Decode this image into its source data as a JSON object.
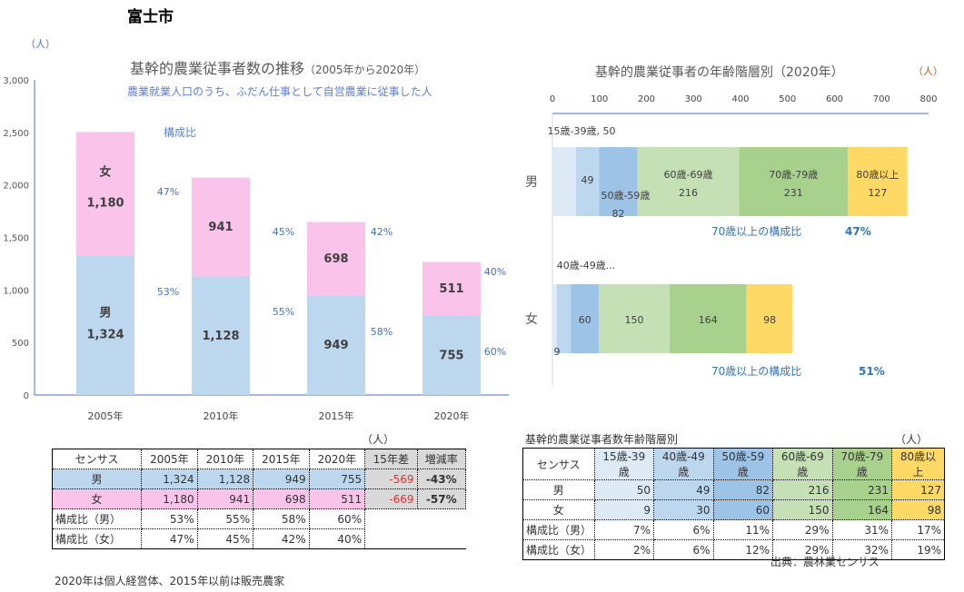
{
  "page_title": "富士市",
  "colors": {
    "male": "#bdd7ee",
    "female": "#f9c3ea",
    "axis": "#4472c4",
    "gray": "#d9d9d9",
    "ages": [
      "#deebf7",
      "#bdd7ee",
      "#9dc3e6",
      "#c5e0b4",
      "#a9d18e",
      "#ffd966"
    ]
  },
  "chart_data": [
    {
      "type": "bar",
      "stacked": true,
      "title": "基幹的農業従事者数の推移",
      "title_suffix": "（2005年から2020年）",
      "subtitle": "農業就業人口のうち、ふだん仕事として自営農業に従事した人",
      "unit_label": "（人）",
      "ratio_label": "構成比",
      "categories": [
        "2005年",
        "2010年",
        "2015年",
        "2020年"
      ],
      "series": [
        {
          "name": "男",
          "values": [
            1324,
            1128,
            949,
            755
          ],
          "labels": [
            "1,324",
            "1,128",
            "949",
            "755"
          ],
          "ratios": [
            "53%",
            "55%",
            "58%",
            "60%"
          ]
        },
        {
          "name": "女",
          "values": [
            1180,
            941,
            698,
            511
          ],
          "labels": [
            "1,180",
            "941",
            "698",
            "511"
          ],
          "ratios": [
            "47%",
            "45%",
            "42%",
            "40%"
          ]
        }
      ],
      "yticks": [
        "0",
        "500",
        "1,000",
        "1,500",
        "2,000",
        "2,500",
        "3,000"
      ],
      "ylim": [
        0,
        3000
      ]
    },
    {
      "type": "bar",
      "orientation": "horizontal",
      "stacked": true,
      "title": "基幹的農業従事者の年齢階層別（2020年）",
      "unit_label": "（人）",
      "categories": [
        "男",
        "女"
      ],
      "xticks": [
        "0",
        "100",
        "200",
        "300",
        "400",
        "500",
        "600",
        "700",
        "800"
      ],
      "xlim": [
        0,
        800
      ],
      "series": [
        {
          "name": "15歳-39歳",
          "values": [
            50,
            9
          ]
        },
        {
          "name": "40歳-49歳",
          "values": [
            49,
            30
          ]
        },
        {
          "name": "50歳-59歳",
          "values": [
            82,
            60
          ]
        },
        {
          "name": "60歳-69歳",
          "values": [
            216,
            150
          ]
        },
        {
          "name": "70歳-79歳",
          "values": [
            231,
            164
          ]
        },
        {
          "name": "80歳以上",
          "values": [
            127,
            98
          ]
        }
      ],
      "male_labels": {
        "s0": "15歳-39歳, 50",
        "s1": "49",
        "s2a": "50歳-59歳",
        "s2b": "82",
        "s3a": "60歳-69歳",
        "s3b": "216",
        "s4a": "70歳-79歳",
        "s4b": "231",
        "s5a": "80歳以上",
        "s5b": "127"
      },
      "female_labels": {
        "s0": "9",
        "s1": "40歳-49歳...",
        "s2": "60",
        "s3": "150",
        "s4": "164",
        "s5": "98"
      },
      "over70_label": "70歳以上の構成比",
      "over70": {
        "male": "47%",
        "female": "51%"
      }
    }
  ],
  "table1": {
    "unit": "（人）",
    "header": [
      "センサス",
      "2005年",
      "2010年",
      "2015年",
      "2020年",
      "15年差",
      "増減率"
    ],
    "rows": [
      [
        "男",
        "1,324",
        "1,128",
        "949",
        "755",
        "-569",
        "-43%"
      ],
      [
        "女",
        "1,180",
        "941",
        "698",
        "511",
        "-669",
        "-57%"
      ],
      [
        "構成比（男）",
        "53%",
        "55%",
        "58%",
        "60%"
      ],
      [
        "構成比（女）",
        "47%",
        "45%",
        "42%",
        "40%"
      ]
    ],
    "note": "2020年は個人経営体、2015年以前は販売農家"
  },
  "table2": {
    "title": "基幹的農業従事者数年齢階層別",
    "unit": "（人）",
    "header": [
      "センサス",
      "15歳-39歳",
      "40歳-49歳",
      "50歳-59歳",
      "60歳-69歳",
      "70歳-79歳",
      "80歳以上"
    ],
    "rows": [
      [
        "男",
        "50",
        "49",
        "82",
        "216",
        "231",
        "127"
      ],
      [
        "女",
        "9",
        "30",
        "60",
        "150",
        "164",
        "98"
      ],
      [
        "構成比（男）",
        "7%",
        "6%",
        "11%",
        "29%",
        "31%",
        "17%"
      ],
      [
        "構成比（女）",
        "2%",
        "6%",
        "12%",
        "29%",
        "32%",
        "19%"
      ]
    ],
    "source": "出典：農林業センサス"
  }
}
